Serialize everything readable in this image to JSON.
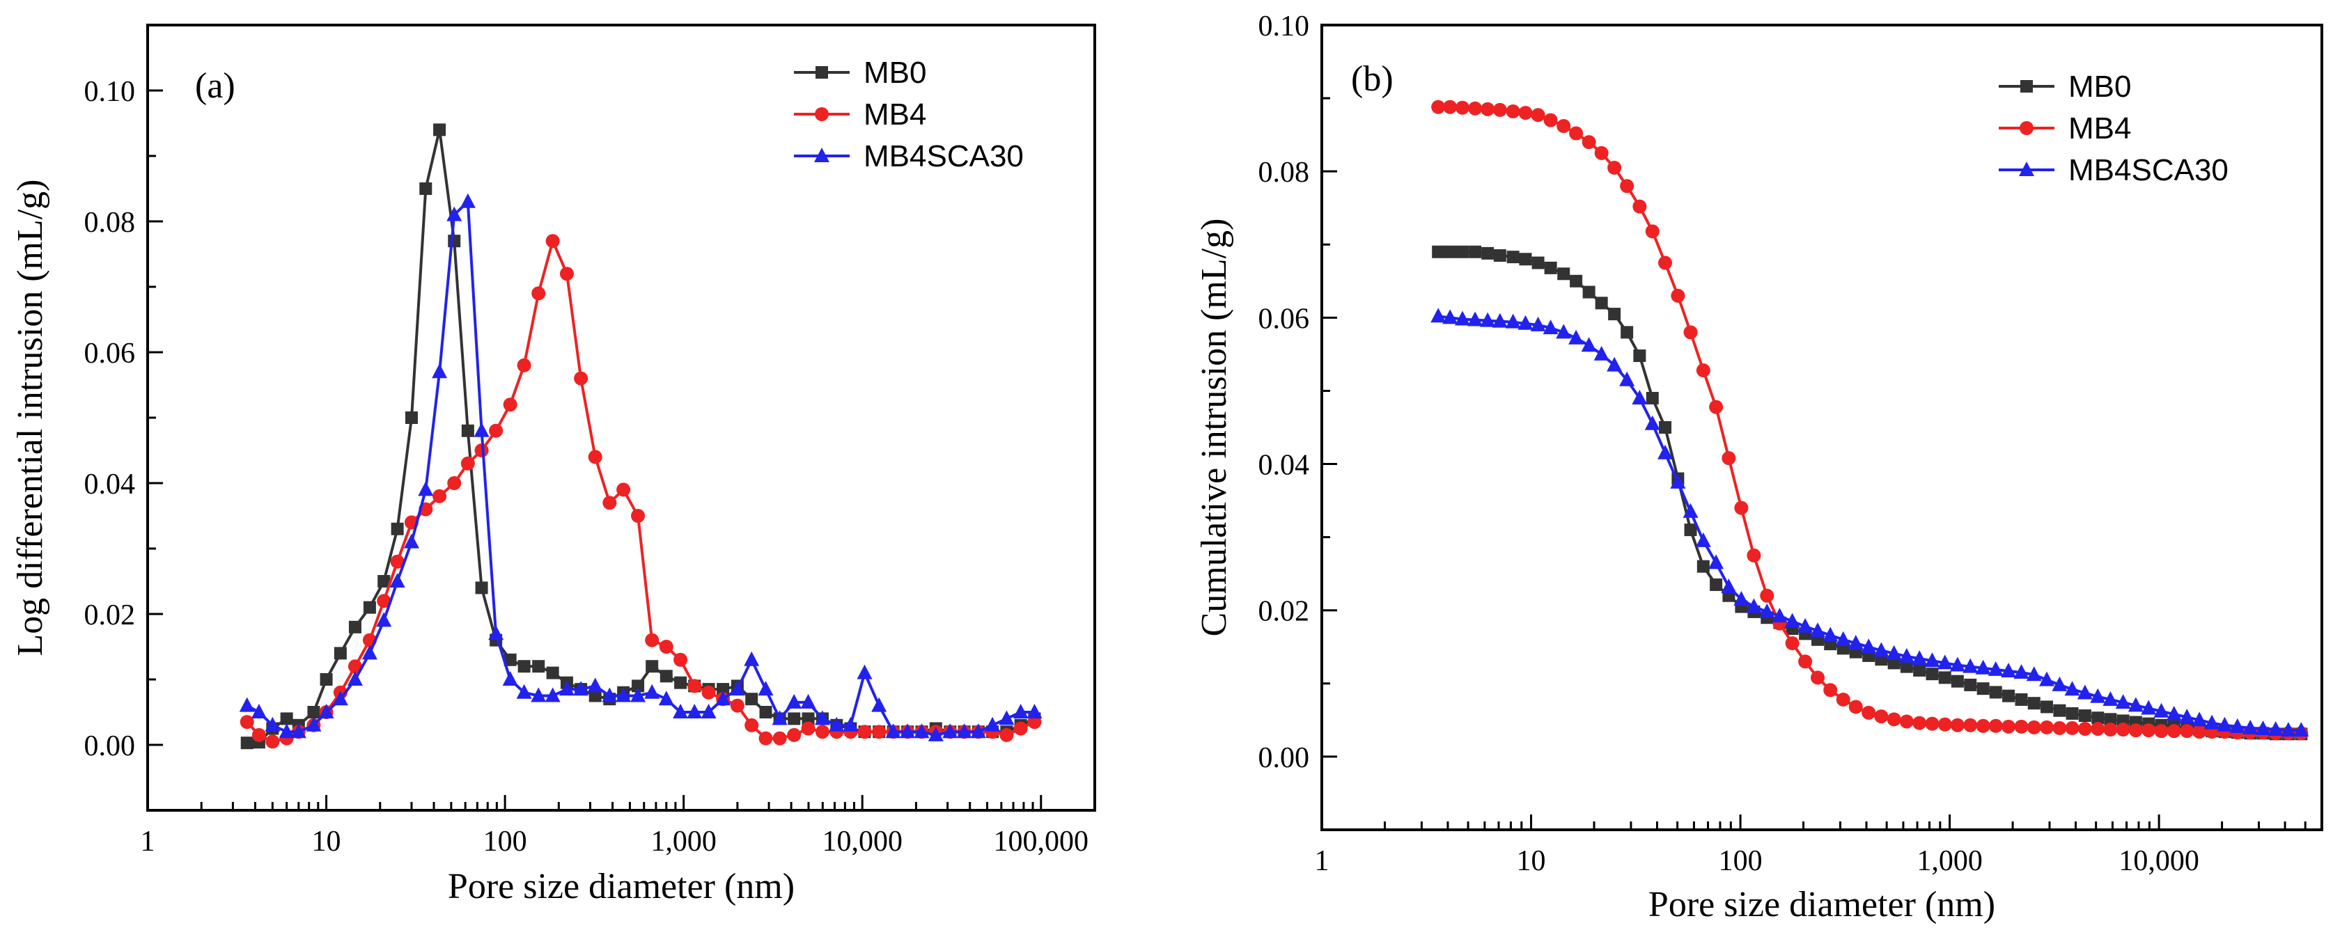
{
  "colors": {
    "MB0": "#333333",
    "MB4": "#ee2222",
    "MB4SCA30": "#2222ee"
  },
  "chart_data": [
    {
      "type": "line",
      "panel_label": "(a)",
      "xlabel": "Pore size diameter (nm)",
      "ylabel": "Log differential intrusion (mL/g)",
      "xscale": "log",
      "xlim": [
        1,
        200000
      ],
      "ylim": [
        -0.01,
        0.11
      ],
      "xticks": [
        1,
        10,
        100,
        1000,
        10000,
        100000
      ],
      "xtick_labels": [
        "1",
        "10",
        "100",
        "1,000",
        "10,000",
        "100,000"
      ],
      "yticks": [
        0,
        0.02,
        0.04,
        0.06,
        0.08,
        0.1
      ],
      "ytick_labels": [
        "0.00",
        "0.02",
        "0.04",
        "0.06",
        "0.08",
        "0.10"
      ],
      "legend_position": "top-right",
      "series": [
        {
          "name": "MB0",
          "marker": "square",
          "x": [
            3.6,
            4.2,
            5,
            6,
            7,
            8.5,
            10,
            12,
            14.5,
            17.5,
            21,
            25,
            30,
            36,
            43,
            52,
            62,
            74,
            89,
            107,
            128,
            154,
            185,
            222,
            266,
            320,
            385,
            460,
            555,
            665,
            800,
            960,
            1150,
            1380,
            1660,
            2000,
            2400,
            2880,
            3450,
            4150,
            4980,
            5980,
            7180,
            8600,
            10300,
            12400,
            14900,
            17900,
            21500,
            25800,
            31000,
            37200,
            44600,
            53500,
            64200,
            77000,
            92000
          ],
          "y": [
            0.0003,
            0.0004,
            0.0025,
            0.004,
            0.003,
            0.005,
            0.01,
            0.014,
            0.018,
            0.021,
            0.025,
            0.033,
            0.05,
            0.085,
            0.094,
            0.077,
            0.048,
            0.024,
            0.016,
            0.013,
            0.012,
            0.012,
            0.011,
            0.0095,
            0.0085,
            0.0075,
            0.007,
            0.008,
            0.009,
            0.012,
            0.0105,
            0.0095,
            0.009,
            0.0085,
            0.0085,
            0.009,
            0.007,
            0.005,
            0.004,
            0.004,
            0.004,
            0.004,
            0.003,
            0.0025,
            0.002,
            0.002,
            0.002,
            0.002,
            0.002,
            0.0025,
            0.002,
            0.002,
            0.002,
            0.002,
            0.002,
            0.003,
            0.004
          ]
        },
        {
          "name": "MB4",
          "marker": "circle",
          "x": [
            3.6,
            4.2,
            5,
            6,
            7,
            8.5,
            10,
            12,
            14.5,
            17.5,
            21,
            25,
            30,
            36,
            43,
            52,
            62,
            74,
            89,
            107,
            128,
            154,
            185,
            222,
            266,
            320,
            385,
            460,
            555,
            665,
            800,
            960,
            1150,
            1380,
            1660,
            2000,
            2400,
            2880,
            3450,
            4150,
            4980,
            5980,
            7180,
            8600,
            10300,
            12400,
            14900,
            17900,
            21500,
            25800,
            31000,
            37200,
            44600,
            53500,
            64200,
            77000,
            92000
          ],
          "y": [
            0.0035,
            0.0015,
            0.0005,
            0.001,
            0.002,
            0.003,
            0.005,
            0.008,
            0.012,
            0.016,
            0.022,
            0.028,
            0.034,
            0.036,
            0.038,
            0.04,
            0.043,
            0.045,
            0.048,
            0.052,
            0.058,
            0.069,
            0.077,
            0.072,
            0.056,
            0.044,
            0.037,
            0.039,
            0.035,
            0.016,
            0.015,
            0.013,
            0.009,
            0.008,
            0.007,
            0.006,
            0.003,
            0.001,
            0.001,
            0.0015,
            0.0025,
            0.002,
            0.002,
            0.002,
            0.002,
            0.002,
            0.002,
            0.002,
            0.002,
            0.002,
            0.002,
            0.002,
            0.002,
            0.002,
            0.0015,
            0.0025,
            0.0035
          ]
        },
        {
          "name": "MB4SCA30",
          "marker": "triangle",
          "x": [
            3.6,
            4.2,
            5,
            6,
            7,
            8.5,
            10,
            12,
            14.5,
            17.5,
            21,
            25,
            30,
            36,
            43,
            52,
            62,
            74,
            89,
            107,
            128,
            154,
            185,
            222,
            266,
            320,
            385,
            460,
            555,
            665,
            800,
            960,
            1150,
            1380,
            1660,
            2000,
            2400,
            2880,
            3450,
            4150,
            4980,
            5980,
            7180,
            8600,
            10300,
            12400,
            14900,
            17900,
            21500,
            25800,
            31000,
            37200,
            44600,
            53500,
            64200,
            77000,
            92000
          ],
          "y": [
            0.006,
            0.005,
            0.003,
            0.002,
            0.002,
            0.003,
            0.005,
            0.007,
            0.01,
            0.014,
            0.019,
            0.025,
            0.031,
            0.039,
            0.057,
            0.081,
            0.083,
            0.048,
            0.017,
            0.01,
            0.008,
            0.0075,
            0.0075,
            0.0085,
            0.0085,
            0.009,
            0.0075,
            0.0075,
            0.0075,
            0.008,
            0.007,
            0.005,
            0.005,
            0.005,
            0.007,
            0.0085,
            0.013,
            0.0085,
            0.004,
            0.0065,
            0.0065,
            0.004,
            0.003,
            0.003,
            0.011,
            0.006,
            0.002,
            0.002,
            0.002,
            0.0015,
            0.002,
            0.002,
            0.002,
            0.003,
            0.004,
            0.005,
            0.005
          ]
        }
      ]
    },
    {
      "type": "line",
      "panel_label": "(b)",
      "xlabel": "Pore size diameter (nm)",
      "ylabel": "Cumulative intrusion (mL/g)",
      "xscale": "log",
      "xlim": [
        1,
        60000
      ],
      "ylim": [
        -0.01,
        0.1
      ],
      "xticks": [
        1,
        10,
        100,
        1000,
        10000
      ],
      "xtick_labels": [
        "1",
        "10",
        "100",
        "1,000",
        "10,000"
      ],
      "yticks": [
        0,
        0.02,
        0.04,
        0.06,
        0.08,
        0.1
      ],
      "ytick_labels": [
        "0.00",
        "0.02",
        "0.04",
        "0.06",
        "0.08",
        "0.10"
      ],
      "legend_position": "top-right",
      "series": [
        {
          "name": "MB0",
          "marker": "square",
          "x": [
            3.6,
            4.1,
            4.7,
            5.4,
            6.2,
            7.1,
            8.2,
            9.4,
            10.8,
            12.4,
            14.3,
            16.4,
            18.9,
            21.7,
            25,
            28.7,
            33,
            38,
            43.7,
            50.3,
            57.8,
            66.5,
            76.5,
            88,
            101,
            116,
            134,
            154,
            177,
            204,
            234,
            269,
            310,
            356,
            410,
            471,
            542,
            623,
            717,
            825,
            949,
            1090,
            1255,
            1445,
            1660,
            1910,
            2200,
            2530,
            2910,
            3350,
            3850,
            4430,
            5100,
            5860,
            6740,
            7750,
            8920,
            10260,
            11800,
            13600,
            15600,
            17900,
            20600,
            23700,
            27300,
            31400,
            36100,
            41500,
            47800
          ],
          "y": [
            0.069,
            0.069,
            0.069,
            0.069,
            0.0688,
            0.0685,
            0.0683,
            0.068,
            0.0675,
            0.0668,
            0.066,
            0.065,
            0.0635,
            0.062,
            0.0605,
            0.058,
            0.0548,
            0.049,
            0.045,
            0.038,
            0.031,
            0.026,
            0.0235,
            0.022,
            0.0205,
            0.0198,
            0.019,
            0.0183,
            0.0175,
            0.0168,
            0.016,
            0.0154,
            0.0148,
            0.0143,
            0.0138,
            0.0133,
            0.0128,
            0.0123,
            0.0118,
            0.0113,
            0.0108,
            0.0103,
            0.0098,
            0.0093,
            0.0088,
            0.0083,
            0.0078,
            0.0073,
            0.0068,
            0.0063,
            0.0059,
            0.0056,
            0.0053,
            0.0051,
            0.0049,
            0.0047,
            0.0045,
            0.0043,
            0.0041,
            0.0039,
            0.0037,
            0.0035,
            0.0034,
            0.0033,
            0.0032,
            0.0032,
            0.0031,
            0.0031,
            0.0031
          ]
        },
        {
          "name": "MB4",
          "marker": "circle",
          "x": [
            3.6,
            4.1,
            4.7,
            5.4,
            6.2,
            7.1,
            8.2,
            9.4,
            10.8,
            12.4,
            14.3,
            16.4,
            18.9,
            21.7,
            25,
            28.7,
            33,
            38,
            43.7,
            50.3,
            57.8,
            66.5,
            76.5,
            88,
            101,
            116,
            134,
            154,
            177,
            204,
            234,
            269,
            310,
            356,
            410,
            471,
            542,
            623,
            717,
            825,
            949,
            1090,
            1255,
            1445,
            1660,
            1910,
            2200,
            2530,
            2910,
            3350,
            3850,
            4430,
            5100,
            5860,
            6740,
            7750,
            8920,
            10260,
            11800,
            13600,
            15600,
            17900,
            20600,
            23700,
            27300,
            31400,
            36100,
            41500,
            47800
          ],
          "y": [
            0.0888,
            0.0888,
            0.0887,
            0.0886,
            0.0885,
            0.0884,
            0.0882,
            0.088,
            0.0877,
            0.087,
            0.0862,
            0.0852,
            0.084,
            0.0825,
            0.0805,
            0.078,
            0.0752,
            0.0718,
            0.0675,
            0.063,
            0.058,
            0.0528,
            0.0478,
            0.0408,
            0.034,
            0.0275,
            0.022,
            0.0182,
            0.0155,
            0.013,
            0.0108,
            0.0091,
            0.0078,
            0.0068,
            0.006,
            0.0055,
            0.0051,
            0.0048,
            0.0046,
            0.0045,
            0.0044,
            0.0043,
            0.0043,
            0.0042,
            0.0042,
            0.0041,
            0.0041,
            0.004,
            0.004,
            0.0039,
            0.0039,
            0.0038,
            0.0038,
            0.0037,
            0.0037,
            0.0036,
            0.0036,
            0.0035,
            0.0035,
            0.0035,
            0.0034,
            0.0034,
            0.0034,
            0.0033,
            0.0033,
            0.0033,
            0.0032,
            0.0032,
            0.0032
          ]
        },
        {
          "name": "MB4SCA30",
          "marker": "triangle",
          "x": [
            3.6,
            4.1,
            4.7,
            5.4,
            6.2,
            7.1,
            8.2,
            9.4,
            10.8,
            12.4,
            14.3,
            16.4,
            18.9,
            21.7,
            25,
            28.7,
            33,
            38,
            43.7,
            50.3,
            57.8,
            66.5,
            76.5,
            88,
            101,
            116,
            134,
            154,
            177,
            204,
            234,
            269,
            310,
            356,
            410,
            471,
            542,
            623,
            717,
            825,
            949,
            1090,
            1255,
            1445,
            1660,
            1910,
            2200,
            2530,
            2910,
            3350,
            3850,
            4430,
            5100,
            5860,
            6740,
            7750,
            8920,
            10260,
            11800,
            13600,
            15600,
            17900,
            20600,
            23700,
            27300,
            31400,
            36100,
            41500,
            47800
          ],
          "y": [
            0.0602,
            0.06,
            0.0598,
            0.0597,
            0.0596,
            0.0595,
            0.0594,
            0.0592,
            0.059,
            0.0586,
            0.058,
            0.0572,
            0.0562,
            0.055,
            0.0535,
            0.0515,
            0.049,
            0.0455,
            0.0415,
            0.0375,
            0.0335,
            0.0295,
            0.0265,
            0.0232,
            0.0215,
            0.0205,
            0.0198,
            0.0192,
            0.0185,
            0.0178,
            0.0172,
            0.0166,
            0.016,
            0.0155,
            0.015,
            0.0145,
            0.0141,
            0.0137,
            0.0134,
            0.0131,
            0.0128,
            0.0125,
            0.0123,
            0.0121,
            0.0119,
            0.0117,
            0.0115,
            0.0112,
            0.0105,
            0.0098,
            0.0092,
            0.0087,
            0.0082,
            0.0078,
            0.0074,
            0.007,
            0.0066,
            0.0062,
            0.0058,
            0.0054,
            0.005,
            0.0046,
            0.0043,
            0.0041,
            0.0039,
            0.0038,
            0.0037,
            0.0036,
            0.0036
          ]
        }
      ]
    }
  ]
}
